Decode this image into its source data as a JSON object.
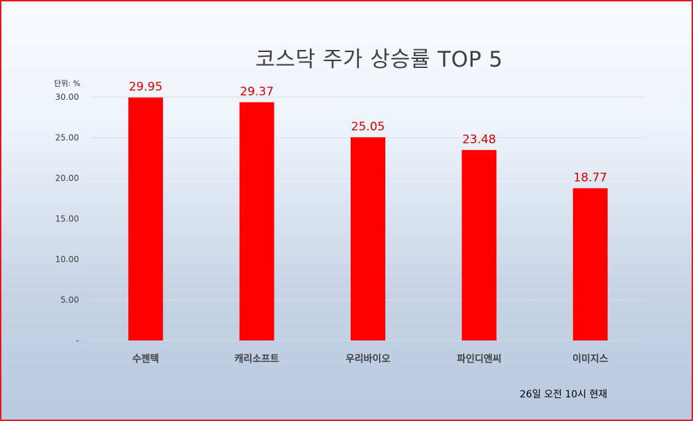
{
  "chart_data": {
    "type": "bar",
    "title": "코스닥 주가 상승률 TOP 5",
    "unit_label": "단위: %",
    "note": "26일  오전 10시 현재",
    "categories": [
      "수젠텍",
      "캐리소프트",
      "우리바이오",
      "파인디앤씨",
      "이미지스"
    ],
    "values": [
      29.95,
      29.37,
      25.05,
      23.48,
      18.77
    ],
    "data_labels": [
      "29.95",
      "29.37",
      "25.05",
      "23.48",
      "18.77"
    ],
    "yticks": [
      0,
      5,
      10,
      15,
      20,
      25,
      30
    ],
    "ytick_labels": [
      "-",
      "5.00",
      "10.00",
      "15.00",
      "20.00",
      "25.00",
      "30.00"
    ],
    "ylim": [
      0,
      30
    ],
    "xlabel": "",
    "ylabel": "",
    "grid": true,
    "bar_color": "#ff0000",
    "label_color": "#d40000"
  }
}
